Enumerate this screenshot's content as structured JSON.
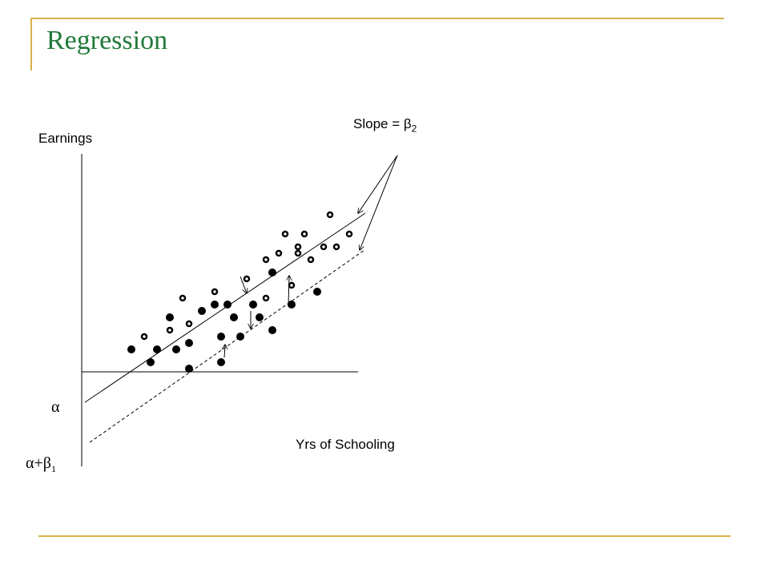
{
  "slide": {
    "title": "Regression"
  },
  "diagram": {
    "y_axis_label": "Earnings",
    "x_axis_label": "Yrs of Schooling",
    "slope_label_prefix": "Slope = β",
    "slope_label_sub": "2",
    "intercept_label": "α",
    "intercept2_prefix": "α+β",
    "intercept2_sub": "1",
    "colors": {
      "title": "#217a3a",
      "frame": "#d8b24a",
      "ink": "#000000"
    }
  }
}
